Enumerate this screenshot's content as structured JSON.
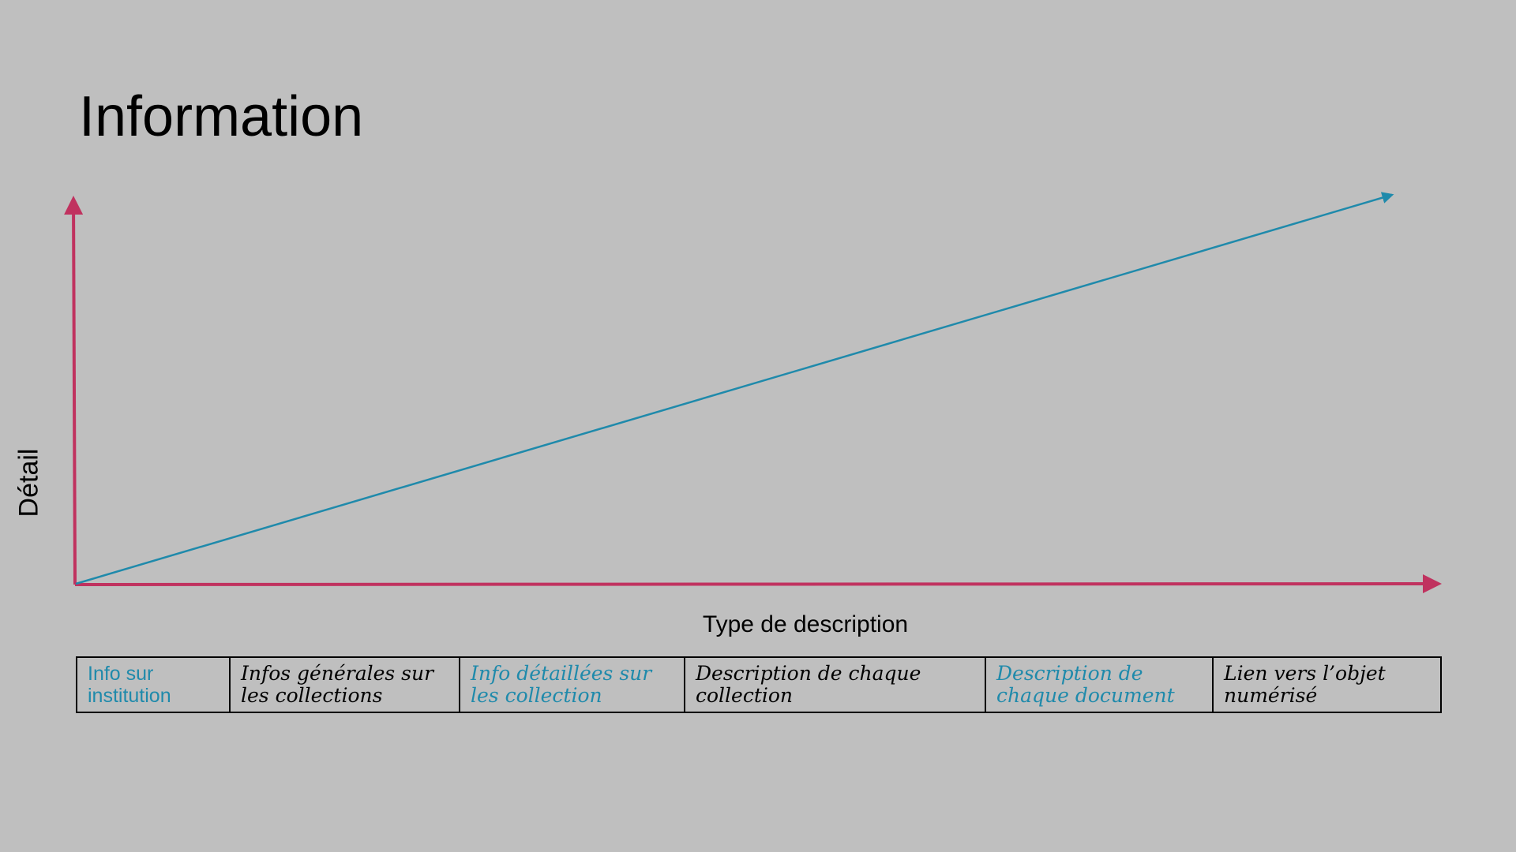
{
  "slide": {
    "title": "Information",
    "y_axis_label": "Détail",
    "x_axis_label": "Type de description"
  },
  "colors": {
    "background": "#bfbfbf",
    "axis": "#c0325f",
    "trend": "#1f8aab",
    "text": "#000000"
  },
  "trend": {
    "direction": "increasing",
    "description_start": "Info sur institution",
    "description_end": "Lien vers l’objet numérisé"
  },
  "categories": [
    {
      "label": "Info sur institution",
      "color": "#1f8aab"
    },
    {
      "label": "Infos générales sur les collections",
      "color": "#000000"
    },
    {
      "label": "Info détaillées sur les collection",
      "color": "#1f8aab"
    },
    {
      "label": "Description de chaque collection",
      "color": "#000000"
    },
    {
      "label": "Description de chaque document",
      "color": "#1f8aab"
    },
    {
      "label": "Lien vers l’objet numérisé",
      "color": "#000000"
    }
  ]
}
